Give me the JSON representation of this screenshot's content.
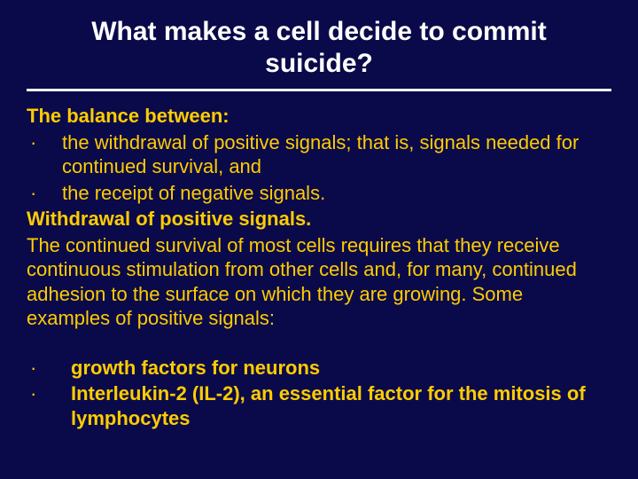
{
  "colors": {
    "background": "#0a0a4a",
    "title_color": "#ffffff",
    "divider_color": "#ffffff",
    "body_color": "#ffcc00"
  },
  "typography": {
    "title_fontsize": 30,
    "body_fontsize": 22,
    "title_weight": "bold"
  },
  "title": "What makes a cell decide to commit suicide?",
  "body": {
    "intro": "The balance between:",
    "bullets_top": [
      "the withdrawal of positive signals; that is, signals needed for continued survival, and",
      "the receipt of negative signals."
    ],
    "subhead": "Withdrawal of positive signals.",
    "paragraph": "The continued survival of most cells requires that they receive continuous stimulation from other cells and, for many, continued adhesion to the surface on which they are growing. Some examples of positive signals:",
    "bullets_bottom": [
      "growth factors for neurons",
      "Interleukin-2 (IL-2), an essential factor for the mitosis of lymphocytes"
    ]
  },
  "bullet_glyph": "·"
}
